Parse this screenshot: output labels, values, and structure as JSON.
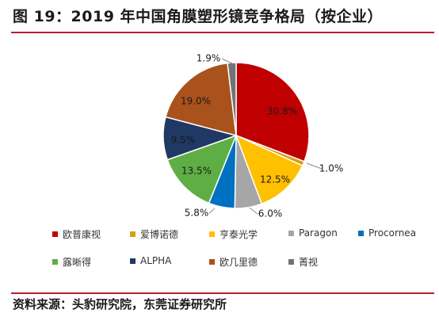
{
  "title": "图 19：2019 年中国角膜塑形镜竞争格局（按企业）",
  "source": "资料来源：头豹研究院，东莞证券研究所",
  "chart_data": {
    "type": "pie",
    "categories": [
      "欧普康视",
      "爱博诺德",
      "亨泰光学",
      "Paragon",
      "Procornea",
      "露晰得",
      "ALPHA",
      "欧几里德",
      "菁视"
    ],
    "values": [
      30.8,
      1.0,
      12.5,
      6.0,
      5.8,
      13.5,
      9.5,
      19.0,
      1.9
    ],
    "labels": [
      "30.8%",
      "1.0%",
      "12.5%",
      "6.0%",
      "5.8%",
      "13.5%",
      "9.5%",
      "19.0%",
      "1.9%"
    ],
    "colors": [
      "#c00000",
      "#d4a017",
      "#ffc000",
      "#a6a6a6",
      "#0070c0",
      "#5fae45",
      "#203864",
      "#a9521b",
      "#737373"
    ],
    "legend_position": "bottom"
  }
}
